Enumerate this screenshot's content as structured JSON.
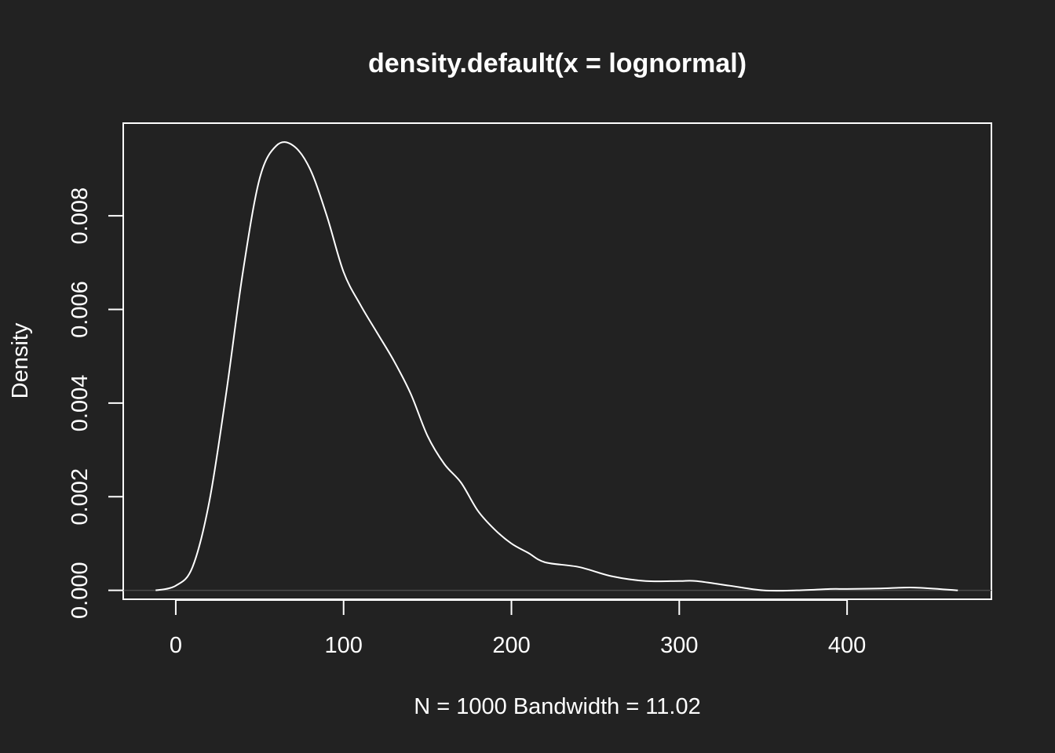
{
  "chart_data": {
    "type": "line",
    "title": "density.default(x = lognormal)",
    "xlabel": "N = 1000   Bandwidth = 11.02",
    "ylabel": "Density",
    "xlim": [
      -31.3,
      486
    ],
    "ylim": [
      -0.00019,
      0.00998
    ],
    "x_ticks": [
      0,
      100,
      200,
      300,
      400
    ],
    "x_tick_labels": [
      "0",
      "100",
      "200",
      "300",
      "400"
    ],
    "y_ticks": [
      0,
      0.002,
      0.004,
      0.006,
      0.008
    ],
    "y_tick_labels": [
      "0.000",
      "0.002",
      "0.004",
      "0.006",
      "0.008"
    ],
    "zero_reference_line": true,
    "grid": false,
    "colors": {
      "background": "#222222",
      "foreground": "#ffffff",
      "zero_line": "#4a4a4a"
    },
    "series": [
      {
        "x": [
          -12,
          0,
          10,
          20,
          30,
          40,
          50,
          60,
          70,
          80,
          90,
          100,
          110,
          120,
          130,
          140,
          150,
          160,
          170,
          180,
          190,
          200,
          210,
          220,
          240,
          260,
          280,
          300,
          310,
          330,
          350,
          370,
          390,
          400,
          420,
          440,
          466
        ],
        "y": [
          0.0,
          0.0001,
          0.0005,
          0.0019,
          0.0042,
          0.0068,
          0.0088,
          0.0095,
          0.0095,
          0.009,
          0.008,
          0.0068,
          0.0061,
          0.0055,
          0.0049,
          0.0042,
          0.0033,
          0.0027,
          0.0023,
          0.0017,
          0.0013,
          0.001,
          0.0008,
          0.0006,
          0.0005,
          0.0003,
          0.0002,
          0.0002,
          0.0002,
          0.0001,
          0.0,
          0.0,
          3e-05,
          3e-05,
          4e-05,
          6e-05,
          0.0
        ]
      }
    ]
  }
}
